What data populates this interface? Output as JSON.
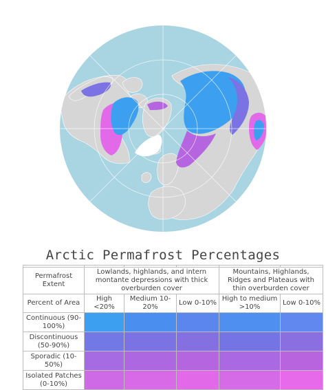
{
  "title": "Arctic Permafrost Percentages",
  "colors": {
    "ocean": "#a9d5e3",
    "land": "#d6d6d6",
    "ice": "#ffffff",
    "border": "#ffffff",
    "grid": "#ffffff"
  },
  "legend": {
    "header": {
      "extent_label": "Permafrost Extent",
      "group1": "Lowlands, highlands, and intern montante depressions with thick overburden cover",
      "group2": "Mountains, Highlands, Ridges and Plateaus with thin overburden cover"
    },
    "subheader": {
      "row_label": "Percent of Area",
      "columns": [
        "High <20%",
        "Medium 10-20%",
        "Low 0-10%",
        "High to medium >10%",
        "Low 0-10%"
      ]
    },
    "rows": [
      {
        "label": "Continuous (90-100%)",
        "colors": [
          "#3d9ff0",
          "#4a8fef",
          "#5a86ee",
          "#4e8ff0",
          "#6088ee"
        ]
      },
      {
        "label": "Discontinuous (50-90%)",
        "colors": [
          "#7278e5",
          "#7b73e3",
          "#8570e2",
          "#7574e4",
          "#8a6fe0"
        ]
      },
      {
        "label": "Sporadic (10-50%)",
        "colors": [
          "#a66ae2",
          "#ad67e1",
          "#b565e0",
          "#aa69e2",
          "#b964df"
        ]
      },
      {
        "label": "Isolated Patches (0-10%)",
        "colors": [
          "#cf6ae6",
          "#d86ae7",
          "#e26ae9",
          "#d56be7",
          "#e66ae9"
        ]
      }
    ]
  }
}
